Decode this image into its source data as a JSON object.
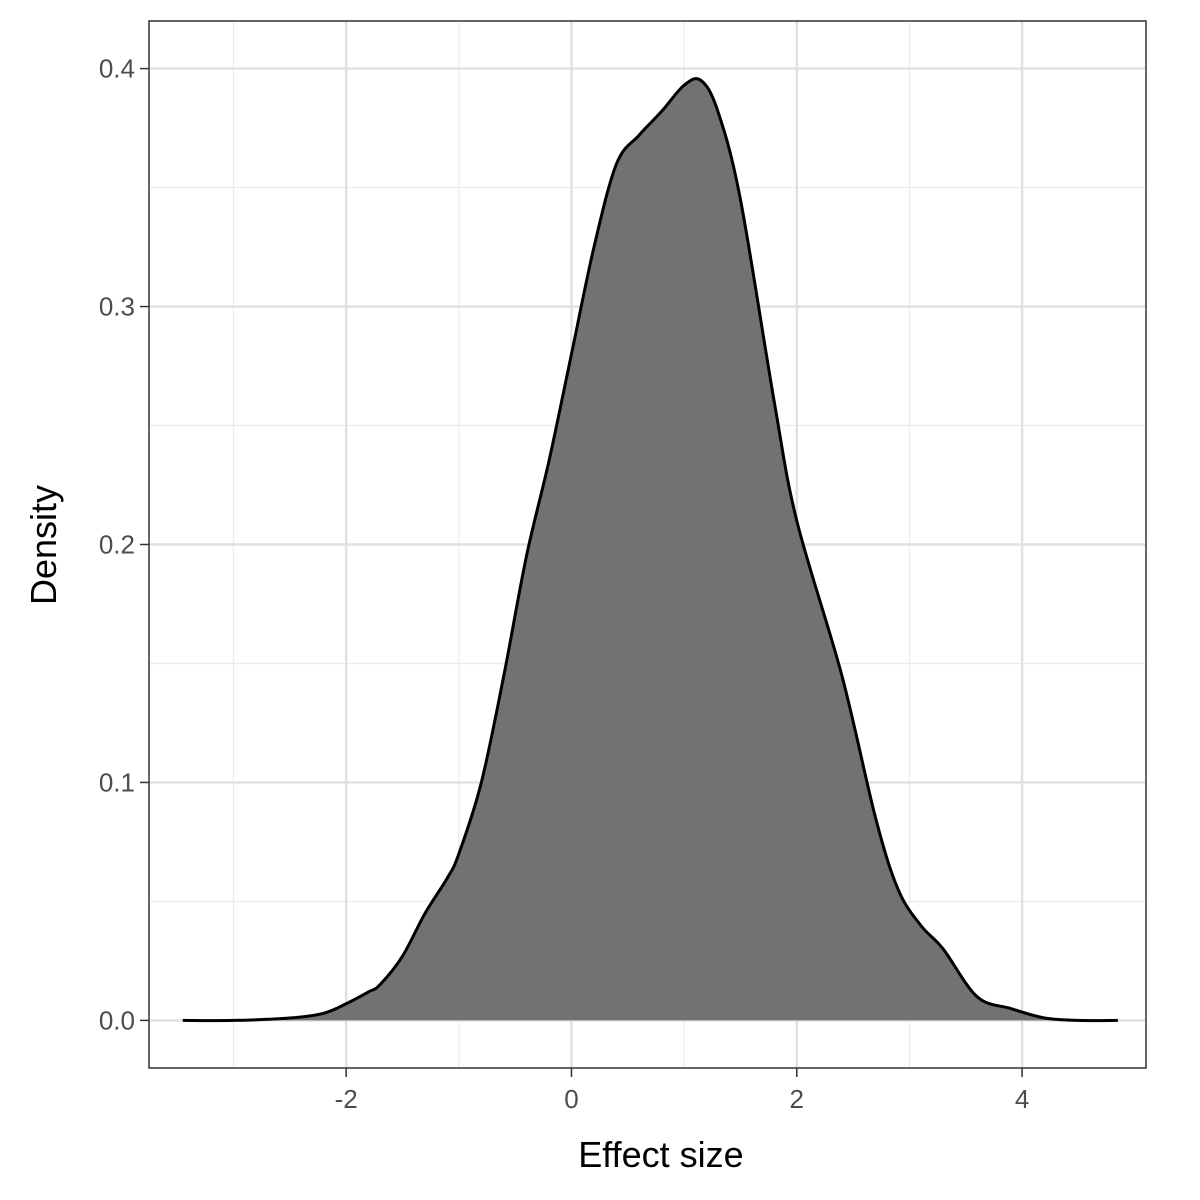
{
  "chart_data": {
    "type": "area",
    "xlabel": "Effect size",
    "ylabel": "Density",
    "xlim": [
      -3.75,
      5.1
    ],
    "ylim": [
      -0.02,
      0.42
    ],
    "x_ticks": [
      -2,
      0,
      2,
      4
    ],
    "x_tick_labels": [
      "-2",
      "0",
      "2",
      "4"
    ],
    "x_minor_ticks": [
      -3,
      -1,
      1,
      3
    ],
    "y_ticks": [
      0.0,
      0.1,
      0.2,
      0.3,
      0.4
    ],
    "y_tick_labels": [
      "0.0",
      "0.1",
      "0.2",
      "0.3",
      "0.4"
    ],
    "y_minor_ticks": [
      0.05,
      0.15,
      0.25,
      0.35
    ],
    "grid": true,
    "fill_color": "#727272",
    "line_color": "#000000",
    "series": [
      {
        "x": [
          -3.45,
          -3.0,
          -2.5,
          -2.2,
          -2.0,
          -1.8,
          -1.7,
          -1.5,
          -1.3,
          -1.1,
          -1.0,
          -0.8,
          -0.6,
          -0.4,
          -0.2,
          0.0,
          0.2,
          0.4,
          0.6,
          0.8,
          1.0,
          1.15,
          1.3,
          1.5,
          1.8,
          2.0,
          2.4,
          2.7,
          2.9,
          3.1,
          3.3,
          3.6,
          3.9,
          4.2,
          4.5,
          4.85
        ],
        "y": [
          0.0,
          0.0,
          0.001,
          0.003,
          0.007,
          0.012,
          0.015,
          0.027,
          0.045,
          0.06,
          0.07,
          0.1,
          0.145,
          0.195,
          0.235,
          0.28,
          0.325,
          0.36,
          0.372,
          0.382,
          0.393,
          0.395,
          0.382,
          0.345,
          0.26,
          0.21,
          0.145,
          0.085,
          0.055,
          0.04,
          0.03,
          0.01,
          0.005,
          0.001,
          0.0,
          0.0
        ]
      }
    ]
  }
}
